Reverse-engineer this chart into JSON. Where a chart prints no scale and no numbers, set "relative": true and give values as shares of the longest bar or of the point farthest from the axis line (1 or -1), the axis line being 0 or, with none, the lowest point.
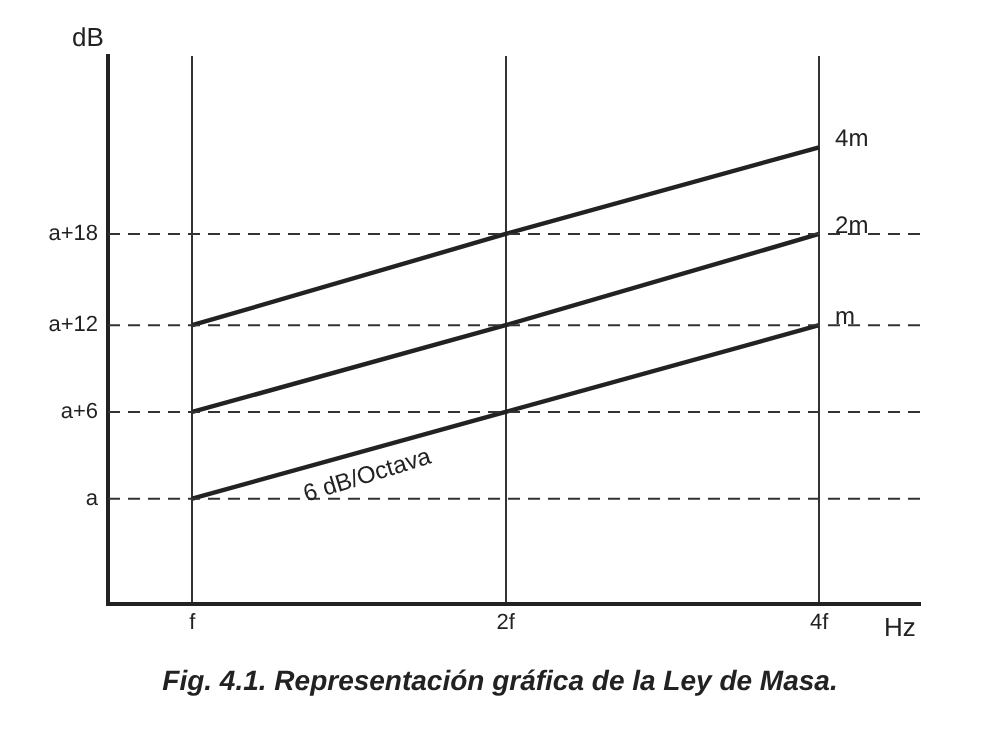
{
  "chart_data": {
    "type": "line",
    "title": "Fig. 4.1. Representación gráfica de la Ley de Masa.",
    "xlabel": "Hz",
    "ylabel": "dB",
    "x": [
      1,
      2,
      4
    ],
    "log": "x",
    "xlim": [
      0.83,
      5
    ],
    "xticks": [
      {
        "value": 1,
        "label": "f"
      },
      {
        "value": 2,
        "label": "2f"
      },
      {
        "value": 4,
        "label": "4f"
      }
    ],
    "relative": true,
    "ref_lines": [
      {
        "axis": "y",
        "value": 0.23,
        "label": "a"
      },
      {
        "axis": "y",
        "value": 0.42,
        "label": "a+6"
      },
      {
        "axis": "y",
        "value": 0.61,
        "label": "a+12"
      },
      {
        "axis": "y",
        "value": 0.81,
        "label": "a+18"
      }
    ],
    "series": [
      {
        "name": "4m",
        "color": "#222222",
        "values": [
          0.61,
          0.81,
          1
        ]
      },
      {
        "name": "2m",
        "color": "#222222",
        "values": [
          0.42,
          0.61,
          0.81
        ]
      },
      {
        "name": "m",
        "color": "#222222",
        "values": [
          0.23,
          0.42,
          0.61
        ]
      }
    ],
    "annotations": [
      {
        "text": "6 dB/Octava",
        "x": 1.45,
        "y": 0.33
      }
    ],
    "grid": "x",
    "marker": "none",
    "line_style": "solid",
    "legend": false
  }
}
